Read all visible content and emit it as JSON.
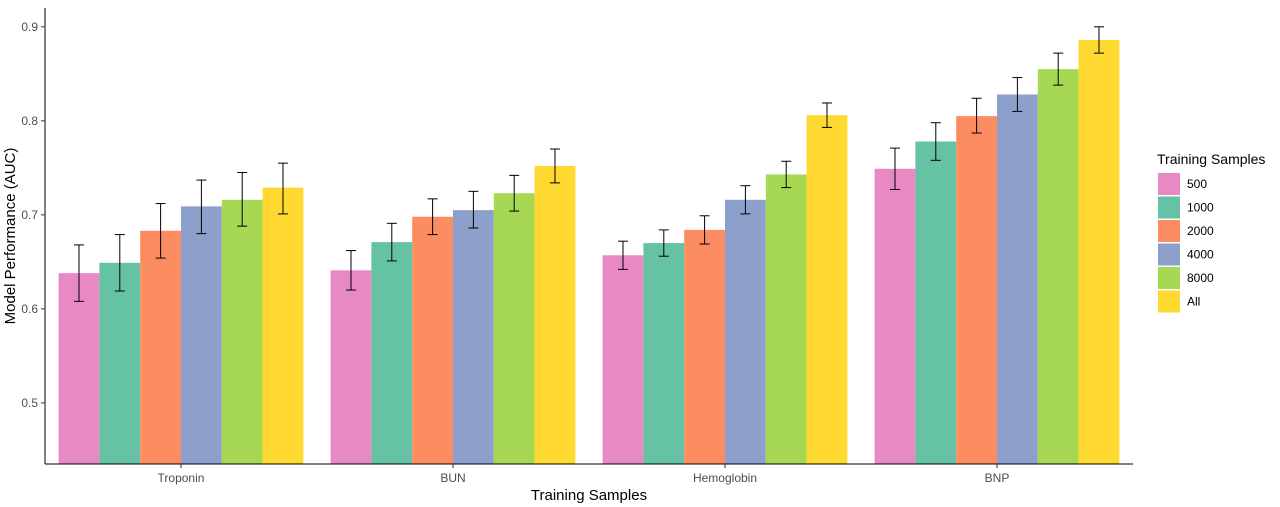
{
  "chart_data": {
    "type": "bar",
    "title": "",
    "xlabel": "Training Samples",
    "ylabel": "Model Performance (AUC)",
    "ylim": [
      0.435,
      0.92
    ],
    "yticks": [
      0.5,
      0.6,
      0.7,
      0.8,
      0.9
    ],
    "ytick_labels": [
      "0.5",
      "0.6",
      "0.7",
      "0.8",
      "0.9"
    ],
    "categories": [
      "Troponin",
      "BUN",
      "Hemoglobin",
      "BNP"
    ],
    "legend": {
      "title": "Training Samples",
      "position": "right"
    },
    "grid": false,
    "error_bars": true,
    "series": [
      {
        "name": "500",
        "color": "#E78AC3",
        "values": [
          0.638,
          0.641,
          0.657,
          0.749
        ],
        "error_low": [
          0.608,
          0.62,
          0.642,
          0.727
        ],
        "error_high": [
          0.668,
          0.662,
          0.672,
          0.771
        ]
      },
      {
        "name": "1000",
        "color": "#66C2A5",
        "values": [
          0.649,
          0.671,
          0.67,
          0.778
        ],
        "error_low": [
          0.619,
          0.651,
          0.656,
          0.758
        ],
        "error_high": [
          0.679,
          0.691,
          0.684,
          0.798
        ]
      },
      {
        "name": "2000",
        "color": "#FC8D62",
        "values": [
          0.683,
          0.698,
          0.684,
          0.805
        ],
        "error_low": [
          0.654,
          0.679,
          0.669,
          0.787
        ],
        "error_high": [
          0.712,
          0.717,
          0.699,
          0.824
        ]
      },
      {
        "name": "4000",
        "color": "#8DA0CB",
        "values": [
          0.709,
          0.705,
          0.716,
          0.828
        ],
        "error_low": [
          0.68,
          0.686,
          0.701,
          0.81
        ],
        "error_high": [
          0.737,
          0.725,
          0.731,
          0.846
        ]
      },
      {
        "name": "8000",
        "color": "#A6D854",
        "values": [
          0.716,
          0.723,
          0.743,
          0.855
        ],
        "error_low": [
          0.688,
          0.704,
          0.729,
          0.838
        ],
        "error_high": [
          0.745,
          0.742,
          0.757,
          0.872
        ]
      },
      {
        "name": "All",
        "color": "#FFD92F",
        "values": [
          0.729,
          0.752,
          0.806,
          0.886
        ],
        "error_low": [
          0.701,
          0.734,
          0.793,
          0.872
        ],
        "error_high": [
          0.755,
          0.77,
          0.819,
          0.9
        ]
      }
    ]
  }
}
